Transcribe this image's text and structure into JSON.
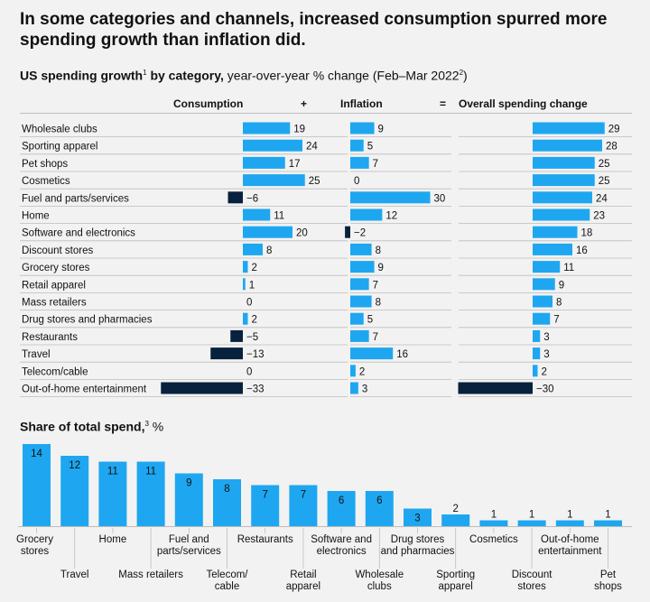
{
  "headline": "In some categories and channels, increased consumption spurred more spending growth than inflation did.",
  "subtitle": {
    "bold": "US spending growth",
    "sup1": "1",
    "bold2": " by category,",
    "rest": " year-over-year % change (Feb–Mar 2022",
    "sup2": "2",
    "end": ")"
  },
  "headers": {
    "consumption": "Consumption",
    "plus": "+",
    "inflation": "Inflation",
    "equals": "=",
    "overall": "Overall spending change"
  },
  "share_title": {
    "bold": "Share of total spend,",
    "sup": "3",
    "unit": " %"
  },
  "colors": {
    "positive": "#1ea7f0",
    "negative": "#08213c",
    "gridline": "#bdbdbd"
  },
  "chart_data": [
    {
      "type": "bar",
      "orientation": "horizontal",
      "categories": [
        "Wholesale clubs",
        "Sporting apparel",
        "Pet shops",
        "Cosmetics",
        "Fuel and parts/services",
        "Home",
        "Software and electronics",
        "Discount stores",
        "Grocery stores",
        "Retail apparel",
        "Mass retailers",
        "Drug stores and pharmacies",
        "Restaurants",
        "Travel",
        "Telecom/cable",
        "Out-of-home entertainment"
      ],
      "series": [
        {
          "name": "Consumption",
          "values": [
            19,
            24,
            17,
            25,
            -6,
            11,
            20,
            8,
            2,
            1,
            0,
            2,
            -5,
            -13,
            0,
            -33
          ]
        },
        {
          "name": "Inflation",
          "values": [
            9,
            5,
            7,
            0,
            30,
            12,
            -2,
            8,
            9,
            7,
            8,
            5,
            7,
            16,
            2,
            3
          ]
        },
        {
          "name": "Overall spending change",
          "values": [
            29,
            28,
            25,
            25,
            24,
            23,
            18,
            16,
            11,
            9,
            8,
            7,
            3,
            3,
            2,
            -30
          ]
        }
      ]
    },
    {
      "type": "bar",
      "orientation": "vertical",
      "title": "Share of total spend, %",
      "categories": [
        "Grocery stores",
        "Travel",
        "Home",
        "Mass retailers",
        "Fuel and parts/services",
        "Telecom/ cable",
        "Restaurants",
        "Retail apparel",
        "Software and electronics",
        "Wholesale clubs",
        "Drug stores and pharmacies",
        "Sporting apparel",
        "Cosmetics",
        "Discount stores",
        "Out-of-home entertainment",
        "Pet shops"
      ],
      "values": [
        14,
        12,
        11,
        11,
        9,
        8,
        7,
        7,
        6,
        6,
        3,
        2,
        1,
        1,
        1,
        1
      ]
    }
  ]
}
